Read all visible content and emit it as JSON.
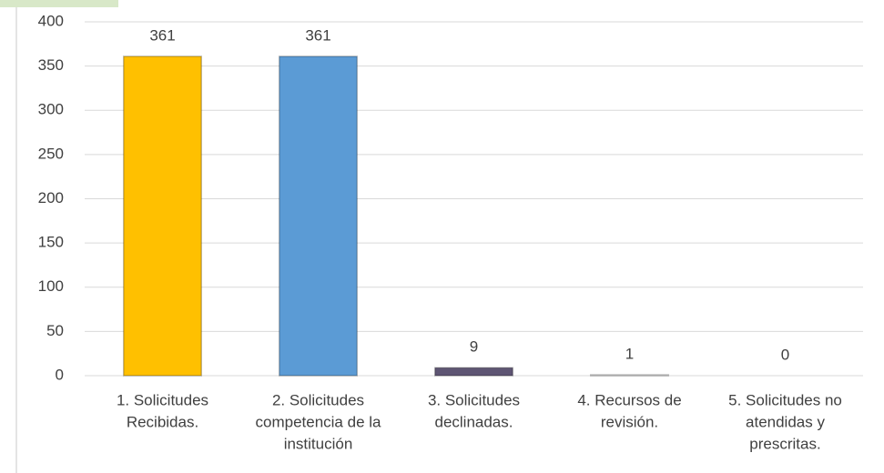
{
  "chart_data": {
    "type": "bar",
    "categories": [
      [
        "1. Solicitudes",
        "Recibidas."
      ],
      [
        "2. Solicitudes",
        "competencia de la",
        "institución"
      ],
      [
        "3. Solicitudes",
        "declinadas."
      ],
      [
        "4. Recursos de",
        "revisión."
      ],
      [
        "5. Solicitudes no",
        "atendidas y",
        "prescritas."
      ]
    ],
    "values": [
      361,
      361,
      9,
      1,
      0
    ],
    "colors": [
      "#ffc000",
      "#5b9bd5",
      "#5e5573",
      "#e4e4e4",
      "#e4e4e4"
    ],
    "ylim": [
      0,
      400
    ],
    "yticks": [
      0,
      50,
      100,
      150,
      200,
      250,
      300,
      350,
      400
    ],
    "grid": true
  }
}
